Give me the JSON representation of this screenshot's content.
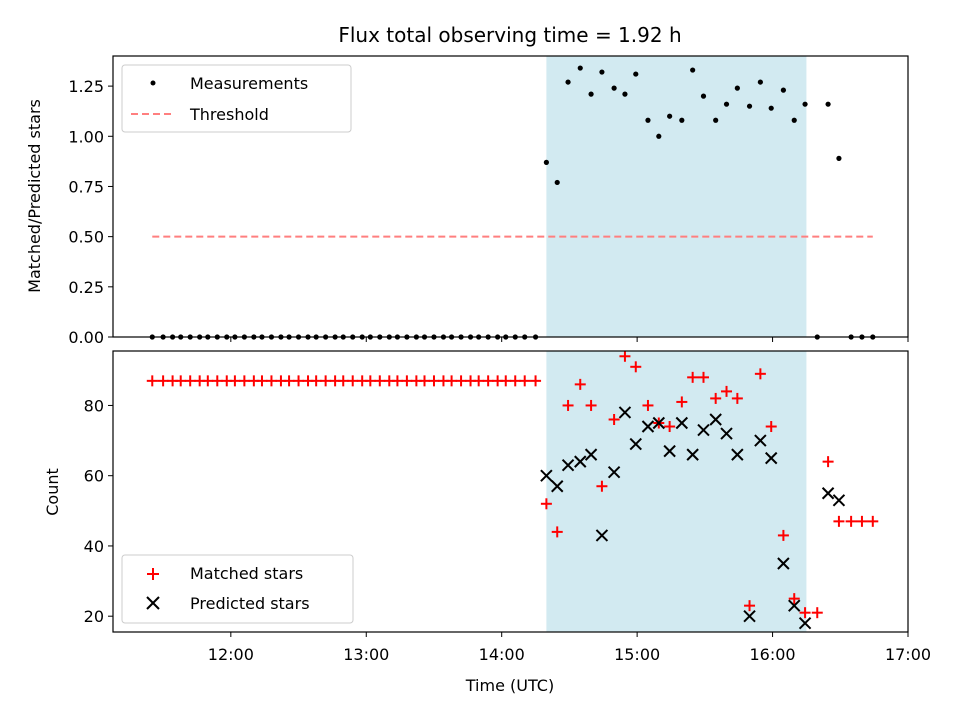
{
  "chart_data": [
    {
      "type": "scatter",
      "title": "Flux total observing time = 1.92 h",
      "xlabel": "",
      "ylabel": "Matched/Predicted stars",
      "xlim": [
        11.13,
        17.0
      ],
      "ylim": [
        0.0,
        1.4
      ],
      "yticks": [
        0.0,
        0.25,
        0.5,
        0.75,
        1.0,
        1.25
      ],
      "ytick_labels": [
        "0.00",
        "0.25",
        "0.50",
        "0.75",
        "1.00",
        "1.25"
      ],
      "shaded_span": {
        "x0": 14.33,
        "x1": 16.25,
        "color": "#add8e6"
      },
      "series": [
        {
          "name": "Measurements",
          "marker": "dot",
          "color": "#000000",
          "points": [
            [
              11.42,
              0
            ],
            [
              11.5,
              0
            ],
            [
              11.57,
              0
            ],
            [
              11.63,
              0
            ],
            [
              11.7,
              0
            ],
            [
              11.77,
              0
            ],
            [
              11.83,
              0
            ],
            [
              11.9,
              0
            ],
            [
              11.97,
              0
            ],
            [
              12.03,
              0
            ],
            [
              12.1,
              0
            ],
            [
              12.17,
              0
            ],
            [
              12.23,
              0
            ],
            [
              12.3,
              0
            ],
            [
              12.37,
              0
            ],
            [
              12.43,
              0
            ],
            [
              12.5,
              0
            ],
            [
              12.57,
              0
            ],
            [
              12.63,
              0
            ],
            [
              12.7,
              0
            ],
            [
              12.77,
              0
            ],
            [
              12.83,
              0
            ],
            [
              12.9,
              0
            ],
            [
              12.97,
              0
            ],
            [
              13.03,
              0
            ],
            [
              13.1,
              0
            ],
            [
              13.17,
              0
            ],
            [
              13.23,
              0
            ],
            [
              13.3,
              0
            ],
            [
              13.37,
              0
            ],
            [
              13.43,
              0
            ],
            [
              13.5,
              0
            ],
            [
              13.57,
              0
            ],
            [
              13.63,
              0
            ],
            [
              13.7,
              0
            ],
            [
              13.77,
              0
            ],
            [
              13.83,
              0
            ],
            [
              13.9,
              0
            ],
            [
              13.97,
              0
            ],
            [
              14.03,
              0
            ],
            [
              14.1,
              0
            ],
            [
              14.17,
              0
            ],
            [
              14.25,
              0
            ],
            [
              14.33,
              0.87
            ],
            [
              14.41,
              0.77
            ],
            [
              14.49,
              1.27
            ],
            [
              14.58,
              1.34
            ],
            [
              14.66,
              1.21
            ],
            [
              14.74,
              1.32
            ],
            [
              14.83,
              1.24
            ],
            [
              14.91,
              1.21
            ],
            [
              14.99,
              1.31
            ],
            [
              15.08,
              1.08
            ],
            [
              15.16,
              1.0
            ],
            [
              15.24,
              1.1
            ],
            [
              15.33,
              1.08
            ],
            [
              15.41,
              1.33
            ],
            [
              15.49,
              1.2
            ],
            [
              15.58,
              1.08
            ],
            [
              15.66,
              1.16
            ],
            [
              15.74,
              1.24
            ],
            [
              15.83,
              1.15
            ],
            [
              15.91,
              1.27
            ],
            [
              15.99,
              1.14
            ],
            [
              16.08,
              1.23
            ],
            [
              16.16,
              1.08
            ],
            [
              16.24,
              1.16
            ],
            [
              16.33,
              0
            ],
            [
              16.41,
              1.16
            ],
            [
              16.49,
              0.89
            ],
            [
              16.58,
              0
            ],
            [
              16.66,
              0
            ],
            [
              16.74,
              0
            ]
          ]
        },
        {
          "name": "Threshold",
          "marker": "dashed-line",
          "color": "#ff7f7f",
          "points": [
            [
              11.42,
              0.5
            ],
            [
              16.74,
              0.5
            ]
          ]
        }
      ],
      "legend": {
        "position": "top-left",
        "entries": [
          "Measurements",
          "Threshold"
        ]
      }
    },
    {
      "type": "scatter",
      "title": "",
      "xlabel": "Time (UTC)",
      "ylabel": "Count",
      "xlim": [
        11.13,
        17.0
      ],
      "ylim": [
        15.5,
        95.5
      ],
      "xticks": [
        12,
        13,
        14,
        15,
        16,
        17
      ],
      "xtick_labels": [
        "12:00",
        "13:00",
        "14:00",
        "15:00",
        "16:00",
        "17:00"
      ],
      "yticks": [
        20,
        40,
        60,
        80
      ],
      "ytick_labels": [
        "20",
        "40",
        "60",
        "80"
      ],
      "shaded_span": {
        "x0": 14.33,
        "x1": 16.25,
        "color": "#add8e6"
      },
      "series": [
        {
          "name": "Matched stars",
          "marker": "plus",
          "color": "#ff0000",
          "points": [
            [
              11.42,
              87
            ],
            [
              11.5,
              87
            ],
            [
              11.57,
              87
            ],
            [
              11.63,
              87
            ],
            [
              11.7,
              87
            ],
            [
              11.77,
              87
            ],
            [
              11.83,
              87
            ],
            [
              11.9,
              87
            ],
            [
              11.97,
              87
            ],
            [
              12.03,
              87
            ],
            [
              12.1,
              87
            ],
            [
              12.17,
              87
            ],
            [
              12.23,
              87
            ],
            [
              12.3,
              87
            ],
            [
              12.37,
              87
            ],
            [
              12.43,
              87
            ],
            [
              12.5,
              87
            ],
            [
              12.57,
              87
            ],
            [
              12.63,
              87
            ],
            [
              12.7,
              87
            ],
            [
              12.77,
              87
            ],
            [
              12.83,
              87
            ],
            [
              12.9,
              87
            ],
            [
              12.97,
              87
            ],
            [
              13.03,
              87
            ],
            [
              13.1,
              87
            ],
            [
              13.17,
              87
            ],
            [
              13.23,
              87
            ],
            [
              13.3,
              87
            ],
            [
              13.37,
              87
            ],
            [
              13.43,
              87
            ],
            [
              13.5,
              87
            ],
            [
              13.57,
              87
            ],
            [
              13.63,
              87
            ],
            [
              13.7,
              87
            ],
            [
              13.77,
              87
            ],
            [
              13.83,
              87
            ],
            [
              13.9,
              87
            ],
            [
              13.97,
              87
            ],
            [
              14.03,
              87
            ],
            [
              14.1,
              87
            ],
            [
              14.17,
              87
            ],
            [
              14.25,
              87
            ],
            [
              14.33,
              52
            ],
            [
              14.41,
              44
            ],
            [
              14.49,
              80
            ],
            [
              14.58,
              86
            ],
            [
              14.66,
              80
            ],
            [
              14.74,
              57
            ],
            [
              14.83,
              76
            ],
            [
              14.91,
              94
            ],
            [
              14.99,
              91
            ],
            [
              15.08,
              80
            ],
            [
              15.16,
              75
            ],
            [
              15.24,
              74
            ],
            [
              15.33,
              81
            ],
            [
              15.41,
              88
            ],
            [
              15.49,
              88
            ],
            [
              15.58,
              82
            ],
            [
              15.66,
              84
            ],
            [
              15.74,
              82
            ],
            [
              15.83,
              23
            ],
            [
              15.91,
              89
            ],
            [
              15.99,
              74
            ],
            [
              16.08,
              43
            ],
            [
              16.16,
              25
            ],
            [
              16.24,
              21
            ],
            [
              16.33,
              21
            ],
            [
              16.41,
              64
            ],
            [
              16.49,
              47
            ],
            [
              16.58,
              47
            ],
            [
              16.66,
              47
            ],
            [
              16.74,
              47
            ]
          ]
        },
        {
          "name": "Predicted stars",
          "marker": "x",
          "color": "#000000",
          "points": [
            [
              14.33,
              60
            ],
            [
              14.41,
              57
            ],
            [
              14.49,
              63
            ],
            [
              14.58,
              64
            ],
            [
              14.66,
              66
            ],
            [
              14.74,
              43
            ],
            [
              14.83,
              61
            ],
            [
              14.91,
              78
            ],
            [
              14.99,
              69
            ],
            [
              15.08,
              74
            ],
            [
              15.16,
              75
            ],
            [
              15.24,
              67
            ],
            [
              15.33,
              75
            ],
            [
              15.41,
              66
            ],
            [
              15.49,
              73
            ],
            [
              15.58,
              76
            ],
            [
              15.66,
              72
            ],
            [
              15.74,
              66
            ],
            [
              15.83,
              20
            ],
            [
              15.91,
              70
            ],
            [
              15.99,
              65
            ],
            [
              16.08,
              35
            ],
            [
              16.16,
              23
            ],
            [
              16.24,
              18
            ],
            [
              16.41,
              55
            ],
            [
              16.49,
              53
            ]
          ]
        }
      ],
      "legend": {
        "position": "bottom-left",
        "entries": [
          "Matched stars",
          "Predicted stars"
        ]
      }
    }
  ]
}
